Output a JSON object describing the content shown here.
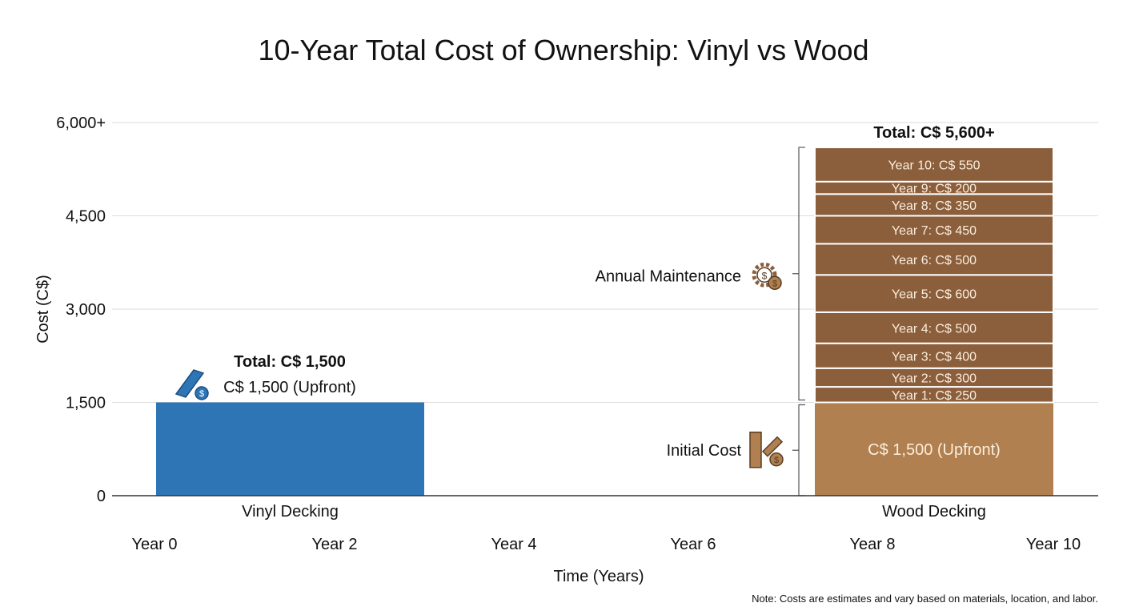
{
  "chart_data": {
    "type": "bar",
    "stacked": true,
    "title": "10-Year Total Cost of Ownership: Vinyl vs Wood",
    "xlabel": "Time (Years)",
    "ylabel": "Cost (C$)",
    "ylim": [
      0,
      6000
    ],
    "yticks": [
      {
        "value": 0,
        "label": "0"
      },
      {
        "value": 1500,
        "label": "1,500"
      },
      {
        "value": 3000,
        "label": "3,000"
      },
      {
        "value": 4500,
        "label": "4,500"
      },
      {
        "value": 6000,
        "label": "6,000+"
      }
    ],
    "xticks": [
      "Year 0",
      "Year 2",
      "Year 4",
      "Year 6",
      "Year 8",
      "Year 10"
    ],
    "grid": true,
    "categories": [
      "Vinyl Decking",
      "Wood Decking"
    ],
    "vinyl": {
      "category": "Vinyl Decking",
      "color": "#2e75b6",
      "total_label": "Total: C$ 1,500",
      "segments": [
        {
          "value": 1500,
          "label": "C$ 1,500 (Upfront)"
        }
      ],
      "icon": "vinyl-plank-dollar-icon"
    },
    "wood": {
      "category": "Wood Decking",
      "initial_color": "#b08050",
      "maintenance_color": "#8b5e3c",
      "total_label": "Total: C$ 5,600+",
      "initial": {
        "value": 1500,
        "label": "C$ 1,500 (Upfront)"
      },
      "maintenance": [
        {
          "year": 1,
          "value": 250,
          "label": "Year 1: C$ 250"
        },
        {
          "year": 2,
          "value": 300,
          "label": "Year 2: C$ 300"
        },
        {
          "year": 3,
          "value": 400,
          "label": "Year 3: C$ 400"
        },
        {
          "year": 4,
          "value": 500,
          "label": "Year 4: C$ 500"
        },
        {
          "year": 5,
          "value": 600,
          "label": "Year 5: C$ 600"
        },
        {
          "year": 6,
          "value": 500,
          "label": "Year 6: C$ 500"
        },
        {
          "year": 7,
          "value": 450,
          "label": "Year 7: C$ 450"
        },
        {
          "year": 8,
          "value": 350,
          "label": "Year 8: C$ 350"
        },
        {
          "year": 9,
          "value": 200,
          "label": "Year 9: C$ 200"
        },
        {
          "year": 10,
          "value": 550,
          "label": "Year 10: C$ 550"
        }
      ],
      "annotations": {
        "maintenance": {
          "label": "Annual Maintenance",
          "icon": "gear-dollar-icon"
        },
        "initial": {
          "label": "Initial Cost",
          "icon": "wood-brush-dollar-icon"
        }
      }
    },
    "note": "Note: Costs are estimates and vary based on materials, location, and labor."
  }
}
